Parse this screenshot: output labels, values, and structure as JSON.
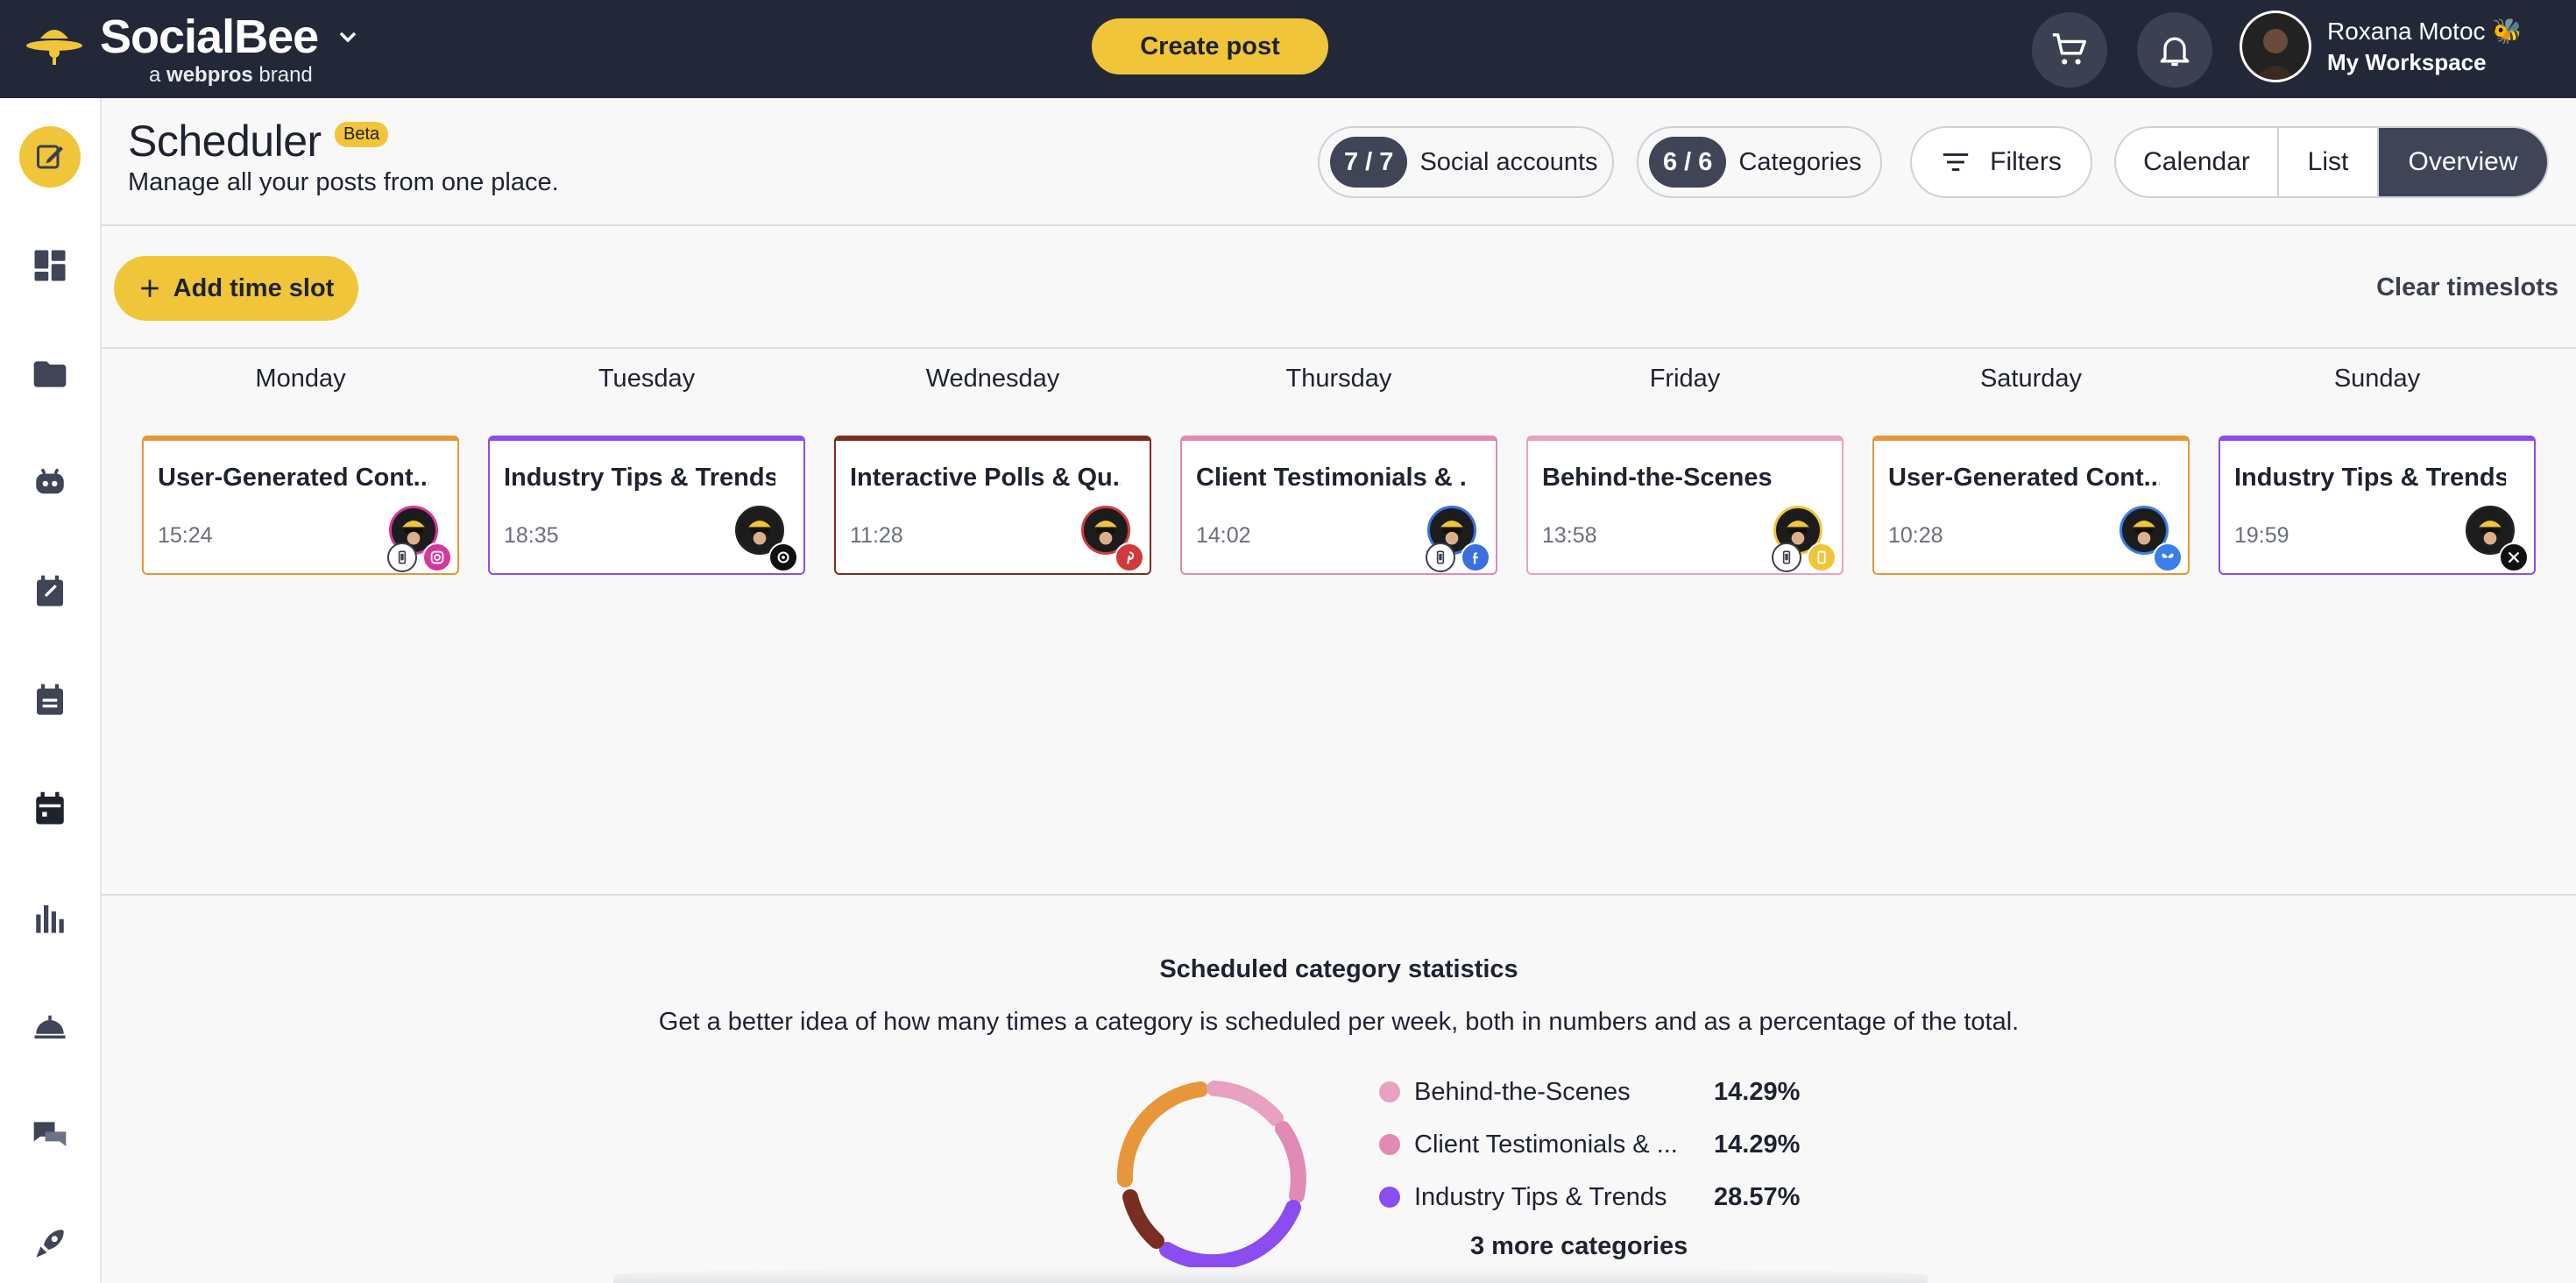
{
  "app": {
    "brand": "SocialBee",
    "brand_sub_prefix": "a",
    "brand_sub_bold": "webpros",
    "brand_sub_suffix": "brand",
    "create_post": "Create post",
    "user_name": "Roxana Motoc",
    "workspace": "My Workspace"
  },
  "colors": {
    "topbar": "#232838",
    "accent_yellow": "#f0c53a",
    "ugc_orange": "#e8963a",
    "industry_purple": "#8b4cf0",
    "polls_brown": "#7a2e22",
    "testimonials_pink": "#e08ab4",
    "bts_pink": "#e8a1c0"
  },
  "sidebar": {
    "items": [
      {
        "icon": "compose-icon",
        "active": true
      },
      {
        "icon": "dashboard-icon",
        "active": false
      },
      {
        "icon": "folder-icon",
        "active": false
      },
      {
        "icon": "bot-icon",
        "active": false
      },
      {
        "icon": "calendar-add-icon",
        "active": false
      },
      {
        "icon": "calendar-list-icon",
        "active": false
      },
      {
        "icon": "scheduler-icon",
        "active": false
      },
      {
        "icon": "analytics-icon",
        "active": false
      },
      {
        "icon": "concierge-icon",
        "active": false
      },
      {
        "icon": "chat-icon",
        "active": false
      },
      {
        "icon": "rocket-icon",
        "active": false
      }
    ]
  },
  "header": {
    "title": "Scheduler",
    "badge": "Beta",
    "subtitle": "Manage all your posts from one place.",
    "social_count": "7 / 7",
    "social_label": "Social accounts",
    "categories_count": "6 / 6",
    "categories_label": "Categories",
    "filters": "Filters",
    "views": [
      "Calendar",
      "List",
      "Overview"
    ],
    "active_view": "Overview"
  },
  "toolbar": {
    "add_slot": "Add time slot",
    "clear": "Clear timeslots"
  },
  "days": [
    "Monday",
    "Tuesday",
    "Wednesday",
    "Thursday",
    "Friday",
    "Saturday",
    "Sunday"
  ],
  "slots": [
    {
      "title": "User-Generated Cont...",
      "time": "15:24",
      "network": "instagram-icon",
      "color": "#e8963a",
      "avatar_ring": "#d6379a",
      "mobile": true
    },
    {
      "title": "Industry Tips & Trends",
      "time": "18:35",
      "network": "threads-icon",
      "color": "#8b4cf0",
      "avatar_ring": "#222222",
      "mobile": false
    },
    {
      "title": "Interactive Polls & Qu...",
      "time": "11:28",
      "network": "pinterest-icon",
      "color": "#7a2e22",
      "avatar_ring": "#d13a3a",
      "mobile": false
    },
    {
      "title": "Client Testimonials & ...",
      "time": "14:02",
      "network": "facebook-icon",
      "color": "#e08ab4",
      "avatar_ring": "#3a6fe0",
      "mobile": true
    },
    {
      "title": "Behind-the-Scenes",
      "time": "13:58",
      "network": "bookmark-icon",
      "color": "#e8a1c0",
      "avatar_ring": "#f0c53a",
      "mobile": true
    },
    {
      "title": "User-Generated Cont...",
      "time": "10:28",
      "network": "bluesky-icon",
      "color": "#e8963a",
      "avatar_ring": "#3a7ee8",
      "mobile": false
    },
    {
      "title": "Industry Tips & Trends",
      "time": "19:59",
      "network": "x-icon",
      "color": "#8b4cf0",
      "avatar_ring": "#222222",
      "mobile": false
    }
  ],
  "stats": {
    "title": "Scheduled category statistics",
    "subtitle": "Get a better idea of how many times a category is scheduled per week, both in numbers and as a percentage of the total.",
    "legend": [
      {
        "name": "Behind-the-Scenes",
        "pct": "14.29%",
        "color": "#e8a1c0"
      },
      {
        "name": "Client Testimonials & ...",
        "pct": "14.29%",
        "color": "#e08ab4"
      },
      {
        "name": "Industry Tips & Trends",
        "pct": "28.57%",
        "color": "#8b4cf0"
      }
    ],
    "more": "3 more categories"
  }
}
